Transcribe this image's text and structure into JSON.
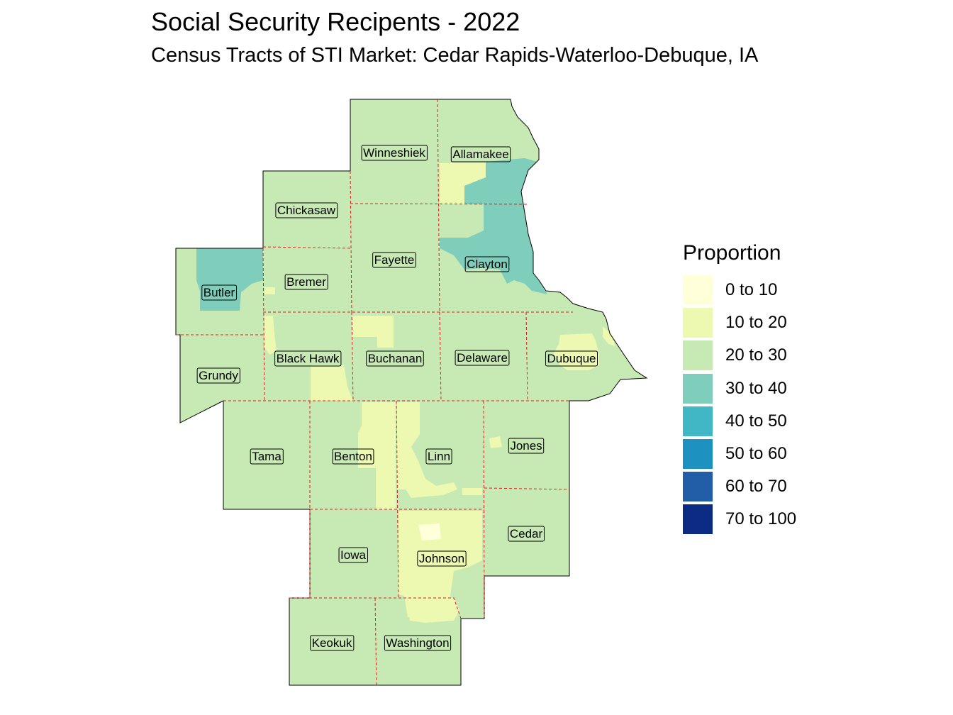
{
  "title": "Social Security Recipents - 2022",
  "subtitle": "Census Tracts of STI Market: Cedar Rapids-Waterloo-Debuque, IA",
  "legend": {
    "title": "Proportion",
    "items": [
      {
        "label": "0 to 10",
        "color": "#FFFFD9"
      },
      {
        "label": "10 to 20",
        "color": "#EDF8B1"
      },
      {
        "label": "20 to 30",
        "color": "#C7E9B4"
      },
      {
        "label": "30 to 40",
        "color": "#7FCDBB"
      },
      {
        "label": "40 to 50",
        "color": "#41B6C4"
      },
      {
        "label": "50 to 60",
        "color": "#1D91C0"
      },
      {
        "label": "60 to 70",
        "color": "#225EA8"
      },
      {
        "label": "70 to 100",
        "color": "#0C2C84"
      }
    ]
  },
  "counties": [
    {
      "name": "Winneshiek",
      "class": "20 to 30"
    },
    {
      "name": "Allamakee",
      "class": "20 to 30"
    },
    {
      "name": "Chickasaw",
      "class": "20 to 30"
    },
    {
      "name": "Fayette",
      "class": "20 to 30"
    },
    {
      "name": "Clayton",
      "class": "30 to 40"
    },
    {
      "name": "Butler",
      "class": "30 to 40"
    },
    {
      "name": "Bremer",
      "class": "20 to 30"
    },
    {
      "name": "Black Hawk",
      "class": "20 to 30"
    },
    {
      "name": "Buchanan",
      "class": "20 to 30"
    },
    {
      "name": "Delaware",
      "class": "20 to 30"
    },
    {
      "name": "Dubuque",
      "class": "20 to 30"
    },
    {
      "name": "Grundy",
      "class": "20 to 30"
    },
    {
      "name": "Tama",
      "class": "20 to 30"
    },
    {
      "name": "Benton",
      "class": "20 to 30"
    },
    {
      "name": "Linn",
      "class": "20 to 30"
    },
    {
      "name": "Jones",
      "class": "20 to 30"
    },
    {
      "name": "Cedar",
      "class": "20 to 30"
    },
    {
      "name": "Iowa",
      "class": "20 to 30"
    },
    {
      "name": "Johnson",
      "class": "10 to 20"
    },
    {
      "name": "Keokuk",
      "class": "20 to 30"
    },
    {
      "name": "Washington",
      "class": "20 to 30"
    }
  ],
  "colors": {
    "boundary": "#E41A1C",
    "outline": "#000000"
  }
}
